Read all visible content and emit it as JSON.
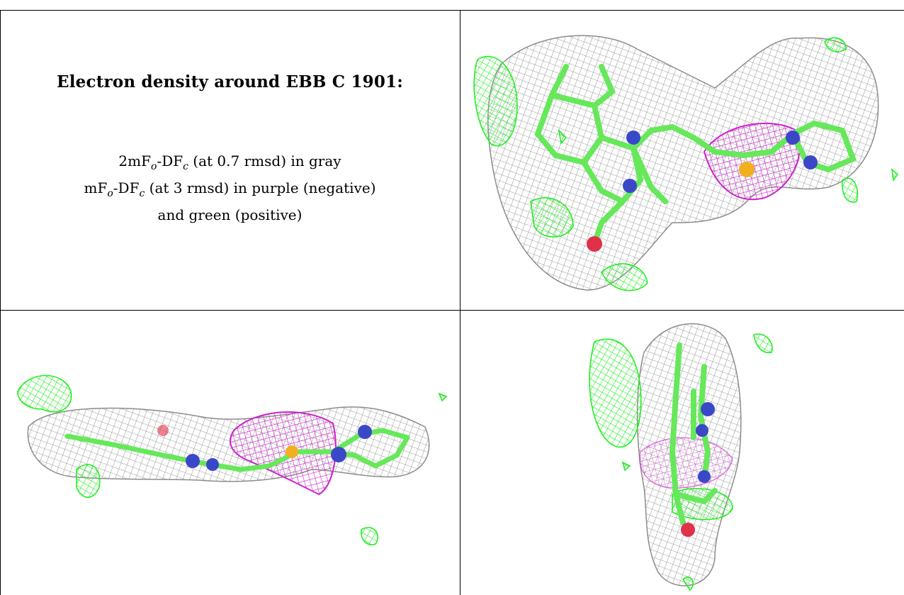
{
  "caption": {
    "title": "Electron density around EBB C 1901:",
    "line1_prefix": "2mF",
    "line1_sub1": "o",
    "line1_mid": "-DF",
    "line1_sub2": "c",
    "line1_suffix": " (at 0.7 rmsd) in gray",
    "line2_prefix": "mF",
    "line2_sub1": "o",
    "line2_mid": "-DF",
    "line2_sub2": "c",
    "line2_suffix": " (at 3 rmsd) in purple (negative)",
    "line3": "and green (positive)"
  },
  "colors": {
    "gray_mesh": "#9a9a9a",
    "purple_mesh": "#cc22cc",
    "green_mesh": "#22ee22",
    "stick": "#66e85a",
    "nitrogen": "#3a48c8",
    "oxygen": "#e0304a",
    "sulfur": "#f0b020"
  },
  "panels": [
    {
      "name": "top-view"
    },
    {
      "name": "side-view"
    },
    {
      "name": "end-view"
    }
  ]
}
